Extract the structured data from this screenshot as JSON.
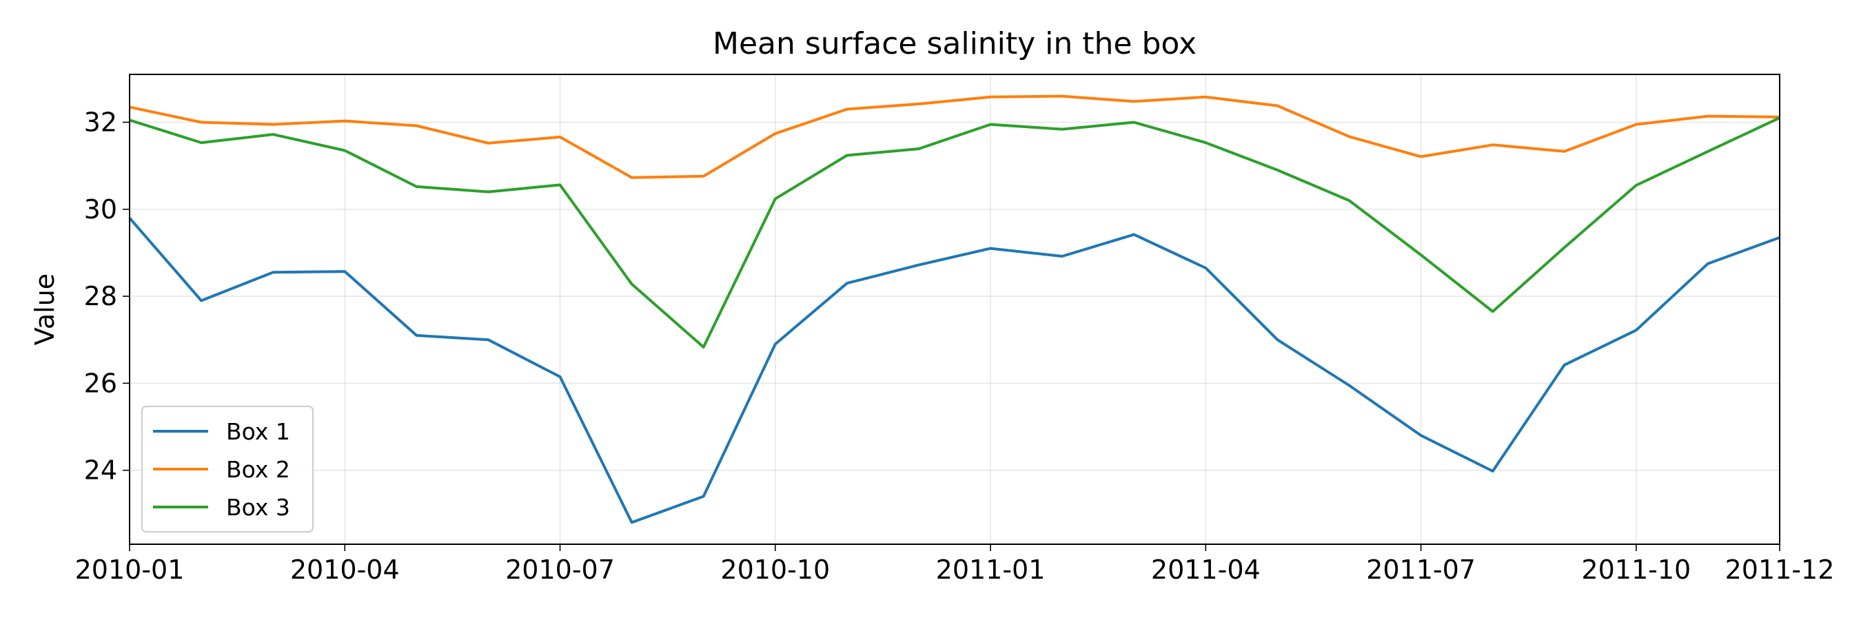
{
  "chart_data": {
    "type": "line",
    "title": "Mean surface salinity in the box",
    "xlabel": "",
    "ylabel": "Value",
    "x": [
      "2010-01",
      "2010-02",
      "2010-03",
      "2010-04",
      "2010-05",
      "2010-06",
      "2010-07",
      "2010-08",
      "2010-09",
      "2010-10",
      "2010-11",
      "2010-12",
      "2011-01",
      "2011-02",
      "2011-03",
      "2011-04",
      "2011-05",
      "2011-06",
      "2011-07",
      "2011-08",
      "2011-09",
      "2011-10",
      "2011-11",
      "2011-12"
    ],
    "x_ticks": [
      "2010-01",
      "2010-04",
      "2010-07",
      "2010-10",
      "2011-01",
      "2011-04",
      "2011-07",
      "2011-10",
      "2011-12"
    ],
    "y_ticks": [
      24,
      26,
      28,
      30,
      32
    ],
    "ylim": [
      22.3,
      33.1
    ],
    "grid": true,
    "legend_position": "lower-left",
    "series": [
      {
        "name": "Box 1",
        "color": "#1f77b4",
        "values": [
          29.8,
          27.9,
          28.55,
          28.57,
          27.1,
          27.0,
          26.15,
          22.8,
          23.4,
          26.9,
          28.3,
          28.72,
          29.1,
          28.92,
          29.42,
          28.65,
          27.0,
          25.95,
          24.8,
          23.98,
          26.42,
          27.22,
          28.75,
          29.35
        ]
      },
      {
        "name": "Box 2",
        "color": "#ff7f0e",
        "values": [
          32.35,
          32.0,
          31.95,
          32.03,
          31.92,
          31.52,
          31.66,
          30.73,
          30.76,
          31.74,
          32.3,
          32.42,
          32.58,
          32.6,
          32.48,
          32.58,
          32.38,
          31.67,
          31.21,
          31.48,
          31.33,
          31.95,
          32.14,
          32.12
        ]
      },
      {
        "name": "Box 3",
        "color": "#2ca02c",
        "values": [
          32.05,
          31.53,
          31.72,
          31.35,
          30.52,
          30.4,
          30.56,
          28.28,
          26.83,
          30.24,
          31.24,
          31.39,
          31.95,
          31.84,
          32.0,
          31.53,
          30.9,
          30.2,
          28.95,
          27.65,
          29.12,
          30.55,
          31.33,
          32.1
        ]
      }
    ]
  }
}
